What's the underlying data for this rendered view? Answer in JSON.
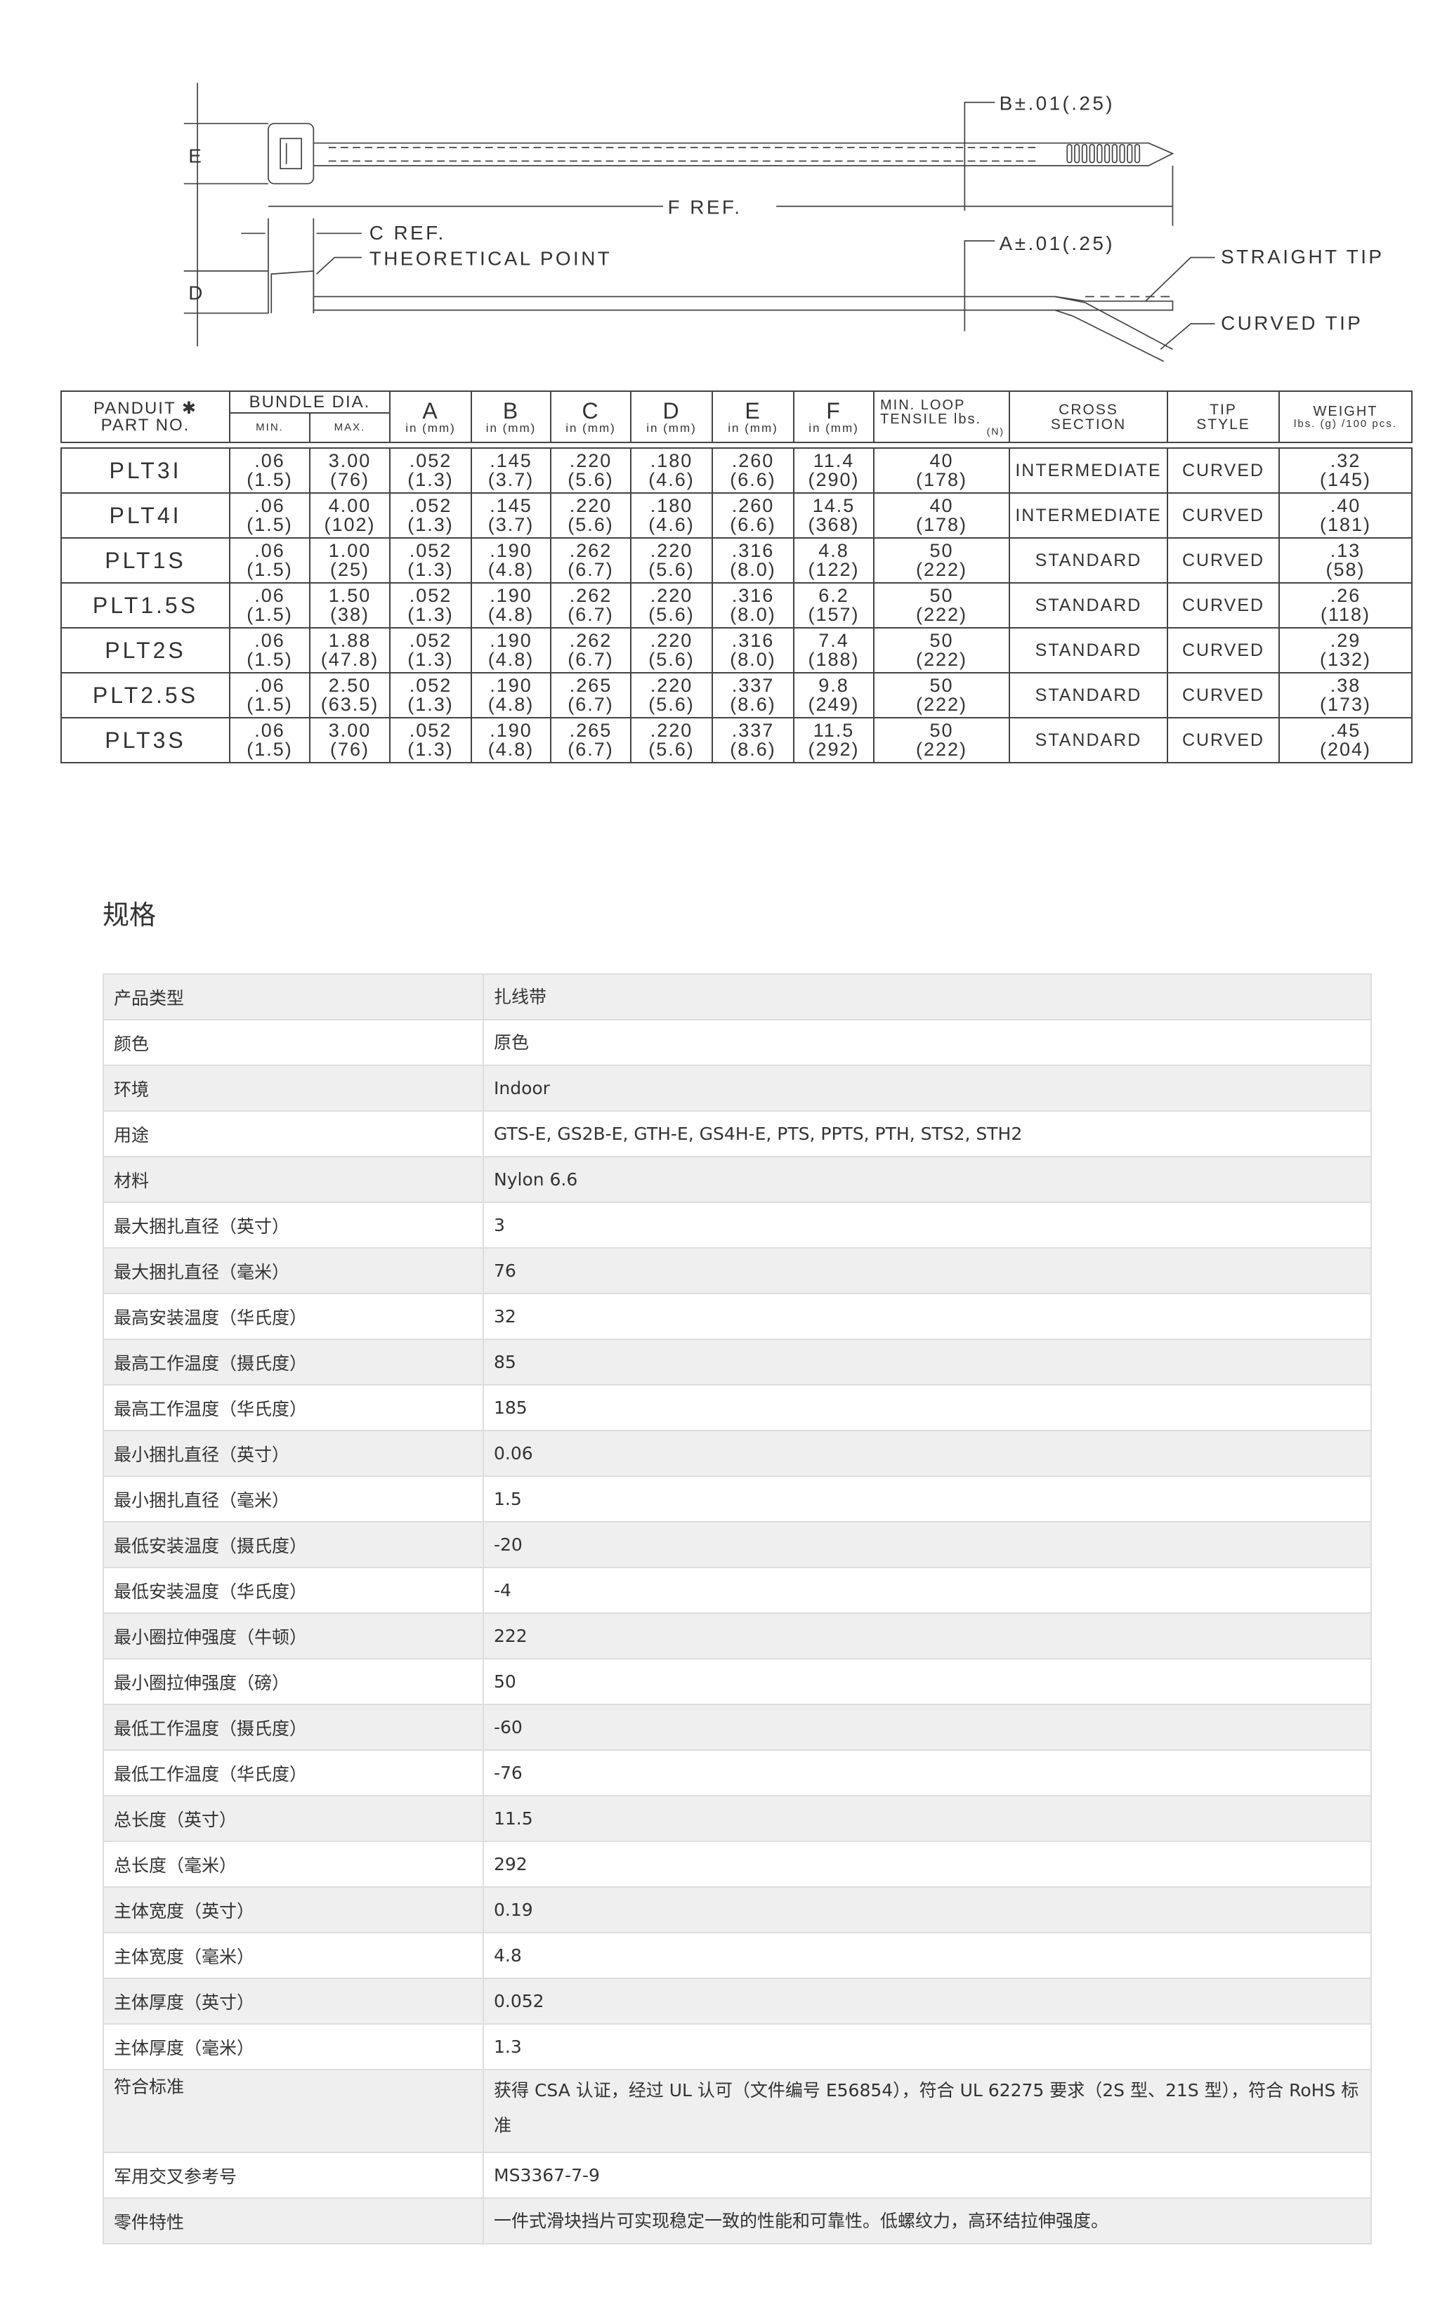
{
  "drawing": {
    "label_e": "E",
    "label_d": "D",
    "label_b": "B±.01(.25)",
    "label_a": "A±.01(.25)",
    "label_f": "F REF.",
    "label_c": "C REF.",
    "label_theoretical": "THEORETICAL POINT",
    "label_straight": "STRAIGHT TIP",
    "label_curved": "CURVED TIP"
  },
  "dims_table": {
    "headers": {
      "part": [
        "PANDUIT ✱",
        "PART NO."
      ],
      "bundle": "BUNDLE DIA.",
      "min": "MIN.",
      "max": "MAX.",
      "in_mm": "in (mm)",
      "a": "A",
      "b": "B",
      "c": "C",
      "d": "D",
      "e": "E",
      "f": "F",
      "tensile": [
        "MIN. LOOP",
        "TENSILE lbs.",
        "(N)"
      ],
      "cross": [
        "CROSS",
        "SECTION"
      ],
      "tip": [
        "TIP",
        "STYLE"
      ],
      "weight": [
        "WEIGHT",
        "lbs. (g) /100 pcs."
      ]
    },
    "rows": [
      {
        "part": "PLT3I",
        "min": [
          ".06",
          "(1.5)"
        ],
        "max": [
          "3.00",
          "(76)"
        ],
        "a": [
          ".052",
          "(1.3)"
        ],
        "b": [
          ".145",
          "(3.7)"
        ],
        "c": [
          ".220",
          "(5.6)"
        ],
        "d": [
          ".180",
          "(4.6)"
        ],
        "e": [
          ".260",
          "(6.6)"
        ],
        "f": [
          "11.4",
          "(290)"
        ],
        "tensile": [
          "40",
          "(178)"
        ],
        "cross": "INTERMEDIATE",
        "tip": "CURVED",
        "weight": [
          ".32",
          "(145)"
        ]
      },
      {
        "part": "PLT4I",
        "min": [
          ".06",
          "(1.5)"
        ],
        "max": [
          "4.00",
          "(102)"
        ],
        "a": [
          ".052",
          "(1.3)"
        ],
        "b": [
          ".145",
          "(3.7)"
        ],
        "c": [
          ".220",
          "(5.6)"
        ],
        "d": [
          ".180",
          "(4.6)"
        ],
        "e": [
          ".260",
          "(6.6)"
        ],
        "f": [
          "14.5",
          "(368)"
        ],
        "tensile": [
          "40",
          "(178)"
        ],
        "cross": "INTERMEDIATE",
        "tip": "CURVED",
        "weight": [
          ".40",
          "(181)"
        ]
      },
      {
        "part": "PLT1S",
        "min": [
          ".06",
          "(1.5)"
        ],
        "max": [
          "1.00",
          "(25)"
        ],
        "a": [
          ".052",
          "(1.3)"
        ],
        "b": [
          ".190",
          "(4.8)"
        ],
        "c": [
          ".262",
          "(6.7)"
        ],
        "d": [
          ".220",
          "(5.6)"
        ],
        "e": [
          ".316",
          "(8.0)"
        ],
        "f": [
          "4.8",
          "(122)"
        ],
        "tensile": [
          "50",
          "(222)"
        ],
        "cross": "STANDARD",
        "tip": "CURVED",
        "weight": [
          ".13",
          "(58)"
        ]
      },
      {
        "part": "PLT1.5S",
        "min": [
          ".06",
          "(1.5)"
        ],
        "max": [
          "1.50",
          "(38)"
        ],
        "a": [
          ".052",
          "(1.3)"
        ],
        "b": [
          ".190",
          "(4.8)"
        ],
        "c": [
          ".262",
          "(6.7)"
        ],
        "d": [
          ".220",
          "(5.6)"
        ],
        "e": [
          ".316",
          "(8.0)"
        ],
        "f": [
          "6.2",
          "(157)"
        ],
        "tensile": [
          "50",
          "(222)"
        ],
        "cross": "STANDARD",
        "tip": "CURVED",
        "weight": [
          ".26",
          "(118)"
        ]
      },
      {
        "part": "PLT2S",
        "min": [
          ".06",
          "(1.5)"
        ],
        "max": [
          "1.88",
          "(47.8)"
        ],
        "a": [
          ".052",
          "(1.3)"
        ],
        "b": [
          ".190",
          "(4.8)"
        ],
        "c": [
          ".262",
          "(6.7)"
        ],
        "d": [
          ".220",
          "(5.6)"
        ],
        "e": [
          ".316",
          "(8.0)"
        ],
        "f": [
          "7.4",
          "(188)"
        ],
        "tensile": [
          "50",
          "(222)"
        ],
        "cross": "STANDARD",
        "tip": "CURVED",
        "weight": [
          ".29",
          "(132)"
        ]
      },
      {
        "part": "PLT2.5S",
        "min": [
          ".06",
          "(1.5)"
        ],
        "max": [
          "2.50",
          "(63.5)"
        ],
        "a": [
          ".052",
          "(1.3)"
        ],
        "b": [
          ".190",
          "(4.8)"
        ],
        "c": [
          ".265",
          "(6.7)"
        ],
        "d": [
          ".220",
          "(5.6)"
        ],
        "e": [
          ".337",
          "(8.6)"
        ],
        "f": [
          "9.8",
          "(249)"
        ],
        "tensile": [
          "50",
          "(222)"
        ],
        "cross": "STANDARD",
        "tip": "CURVED",
        "weight": [
          ".38",
          "(173)"
        ]
      },
      {
        "part": "PLT3S",
        "min": [
          ".06",
          "(1.5)"
        ],
        "max": [
          "3.00",
          "(76)"
        ],
        "a": [
          ".052",
          "(1.3)"
        ],
        "b": [
          ".190",
          "(4.8)"
        ],
        "c": [
          ".265",
          "(6.7)"
        ],
        "d": [
          ".220",
          "(5.6)"
        ],
        "e": [
          ".337",
          "(8.6)"
        ],
        "f": [
          "11.5",
          "(292)"
        ],
        "tensile": [
          "50",
          "(222)"
        ],
        "cross": "STANDARD",
        "tip": "CURVED",
        "weight": [
          ".45",
          "(204)"
        ]
      }
    ]
  },
  "specs": {
    "title": "规格",
    "rows": [
      {
        "label": "产品类型",
        "value": "扎线带"
      },
      {
        "label": "颜色",
        "value": "原色"
      },
      {
        "label": "环境",
        "value": "Indoor"
      },
      {
        "label": "用途",
        "value": "GTS-E, GS2B-E, GTH-E, GS4H-E, PTS, PPTS, PTH, STS2, STH2"
      },
      {
        "label": "材料",
        "value": "Nylon 6.6"
      },
      {
        "label": "最大捆扎直径（英寸）",
        "value": "3"
      },
      {
        "label": "最大捆扎直径（毫米）",
        "value": "76"
      },
      {
        "label": "最高安装温度（华氏度）",
        "value": "32"
      },
      {
        "label": "最高工作温度（摄氏度）",
        "value": "85"
      },
      {
        "label": "最高工作温度（华氏度）",
        "value": "185"
      },
      {
        "label": "最小捆扎直径（英寸）",
        "value": "0.06"
      },
      {
        "label": "最小捆扎直径（毫米）",
        "value": "1.5"
      },
      {
        "label": "最低安装温度（摄氏度）",
        "value": "-20"
      },
      {
        "label": "最低安装温度（华氏度）",
        "value": "-4"
      },
      {
        "label": "最小圈拉伸强度（牛顿）",
        "value": "222"
      },
      {
        "label": "最小圈拉伸强度（磅）",
        "value": "50"
      },
      {
        "label": "最低工作温度（摄氏度）",
        "value": "-60"
      },
      {
        "label": "最低工作温度（华氏度）",
        "value": "-76"
      },
      {
        "label": "总长度（英寸）",
        "value": "11.5"
      },
      {
        "label": "总长度（毫米）",
        "value": "292"
      },
      {
        "label": "主体宽度（英寸）",
        "value": "0.19"
      },
      {
        "label": "主体宽度（毫米）",
        "value": "4.8"
      },
      {
        "label": "主体厚度（英寸）",
        "value": "0.052"
      },
      {
        "label": "主体厚度（毫米）",
        "value": "1.3"
      },
      {
        "label": "符合标准",
        "value": "获得 CSA 认证，经过 UL 认可（文件编号 E56854），符合 UL 62275 要求（2S 型、21S 型），符合 RoHS 标准"
      },
      {
        "label": "军用交叉参考号",
        "value": "MS3367-7-9"
      },
      {
        "label": "零件特性",
        "value": "一件式滑块挡片可实现稳定一致的性能和可靠性。低螺纹力，高环结拉伸强度。"
      }
    ]
  }
}
